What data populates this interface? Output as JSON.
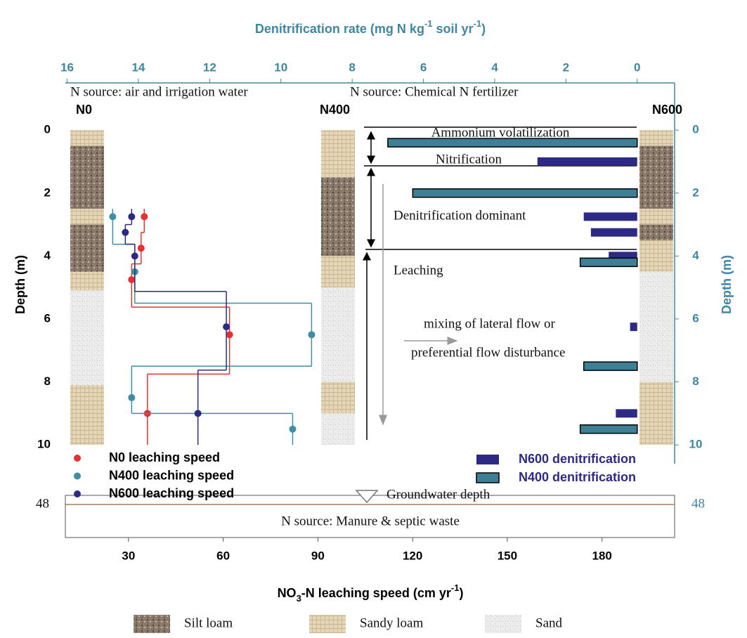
{
  "chart_data": {
    "type": "depth_profile",
    "x_top_label": [
      {
        "text": "Denitrification rate (mg N kg",
        "shift": "none"
      },
      {
        "text": "-1",
        "shift": "super"
      },
      {
        "text": " soil yr",
        "shift": "none"
      },
      {
        "text": "-1",
        "shift": "super"
      },
      {
        "text": ")",
        "shift": "none"
      }
    ],
    "x_top_lim": [
      16.05,
      -1.05
    ],
    "x_top_ticks": [
      16,
      14,
      12,
      10,
      8,
      6,
      4,
      2,
      0
    ],
    "x_label": [
      {
        "text": "NO",
        "shift": "none"
      },
      {
        "text": "3",
        "shift": "sub"
      },
      {
        "text": "-N leaching speed (cm yr",
        "shift": "none"
      },
      {
        "text": "-1",
        "shift": "super"
      },
      {
        "text": ")",
        "shift": "none"
      }
    ],
    "xlim": [
      10,
      203
    ],
    "xticks": [
      30,
      60,
      90,
      120,
      150,
      180
    ],
    "y_label": "Depth (m)",
    "ylim": [
      -1.5,
      10.6
    ],
    "yticks": [
      0,
      2,
      4,
      6,
      8,
      10
    ],
    "groundwater_tick": 48,
    "series": [
      {
        "name": "N0 leaching speed",
        "color": "#e8312e",
        "depths": [
          2.75,
          3.75,
          4.75,
          6.5,
          9
        ],
        "values": [
          35,
          34,
          31,
          62,
          36
        ]
      },
      {
        "name": "N400 leaching speed",
        "color": "#3e8ea6",
        "depths": [
          2.75,
          4.5,
          6.5,
          8.5,
          9.5
        ],
        "values": [
          25,
          32,
          88,
          31,
          82
        ]
      },
      {
        "name": "N600 leaching speed",
        "color": "#2d2a85",
        "depths": [
          2.75,
          3.25,
          4,
          6.25,
          9
        ],
        "values": [
          31,
          29,
          32,
          61,
          52
        ]
      }
    ],
    "bar_series": [
      {
        "name": "N600 denitrification",
        "color": "#2d2a85",
        "border": false,
        "depths": [
          1,
          2.75,
          3.25,
          4,
          6.25,
          9
        ],
        "values": [
          2.8,
          1.5,
          1.3,
          0.8,
          0.2,
          0.6
        ]
      },
      {
        "name": "N400 denitrification",
        "color": "#3e7f96",
        "border": true,
        "depths": [
          0.4,
          2,
          4.2,
          7.5,
          9.5
        ],
        "values": [
          7.0,
          6.3,
          1.6,
          1.5,
          1.6
        ]
      }
    ],
    "soil_legend": [
      {
        "label": "Silt loam",
        "pattern": "silt"
      },
      {
        "label": "Sandy loam",
        "pattern": "sandy"
      },
      {
        "label": "Sand",
        "pattern": "sand"
      }
    ],
    "soil_columns": [
      {
        "name": "N0",
        "layers": [
          {
            "pattern": "sandy",
            "top": 0,
            "bottom": 0.5
          },
          {
            "pattern": "silt",
            "top": 0.5,
            "bottom": 2.5
          },
          {
            "pattern": "sandy",
            "top": 2.5,
            "bottom": 3
          },
          {
            "pattern": "silt",
            "top": 3,
            "bottom": 4.5
          },
          {
            "pattern": "sandy",
            "top": 4.5,
            "bottom": 5.1
          },
          {
            "pattern": "sand",
            "top": 5.1,
            "bottom": 8.1
          },
          {
            "pattern": "sandy",
            "top": 8.1,
            "bottom": 10
          }
        ]
      },
      {
        "name": "N400",
        "layers": [
          {
            "pattern": "sandy",
            "top": 0,
            "bottom": 1.5
          },
          {
            "pattern": "silt",
            "top": 1.5,
            "bottom": 4
          },
          {
            "pattern": "sandy",
            "top": 4,
            "bottom": 5
          },
          {
            "pattern": "sand",
            "top": 5,
            "bottom": 8
          },
          {
            "pattern": "sandy",
            "top": 8,
            "bottom": 9
          },
          {
            "pattern": "sand",
            "top": 9,
            "bottom": 10
          }
        ]
      },
      {
        "name": "N600",
        "layers": [
          {
            "pattern": "sandy",
            "top": 0,
            "bottom": 0.5
          },
          {
            "pattern": "silt",
            "top": 0.5,
            "bottom": 2.5
          },
          {
            "pattern": "sandy",
            "top": 2.5,
            "bottom": 3
          },
          {
            "pattern": "silt",
            "top": 3,
            "bottom": 3.5
          },
          {
            "pattern": "sandy",
            "top": 3.5,
            "bottom": 4.5
          },
          {
            "pattern": "sand",
            "top": 4.5,
            "bottom": 8
          },
          {
            "pattern": "sandy",
            "top": 8,
            "bottom": 10
          }
        ]
      }
    ],
    "annotations": {
      "source_left": "N source: air and irrigation water",
      "source_right": "N source: Chemical N fertilizer",
      "ammonium": "Ammonium volatilization",
      "nitrification": "Nitrification",
      "denitrification": "Denitrification dominant",
      "leaching": "Leaching",
      "mixing_1": "mixing of lateral flow or",
      "mixing_2": "preferential flow disturbance",
      "groundwater": "Groundwater depth",
      "source_bottom": "N source: Manure & septic waste"
    }
  }
}
